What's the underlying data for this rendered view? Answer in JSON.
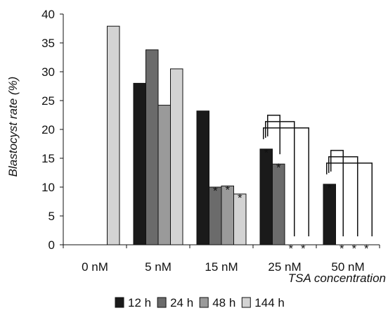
{
  "chart_data": {
    "type": "bar",
    "ylabel": "Blastocyst rate (%)",
    "xlabel": "TSA concentration",
    "ylim": [
      0,
      40
    ],
    "yticks": [
      "0",
      "5",
      "10",
      "15",
      "20",
      "25",
      "30",
      "35",
      "40"
    ],
    "categories": [
      "0 nM",
      "5 nM",
      "15 nM",
      "25 nM",
      "50 nM"
    ],
    "series": [
      {
        "name": "12 h",
        "color": "#1a1a1a",
        "values": [
          null,
          28.0,
          23.2,
          16.6,
          10.5
        ]
      },
      {
        "name": "24 h",
        "color": "#6b6b6b",
        "values": [
          null,
          33.8,
          10.0,
          14.0,
          0
        ]
      },
      {
        "name": "48 h",
        "color": "#9a9a9a",
        "values": [
          null,
          24.2,
          10.2,
          0,
          0
        ]
      },
      {
        "name": "144 h",
        "color": "#d3d3d3",
        "values": [
          37.9,
          30.5,
          8.8,
          0,
          0
        ]
      }
    ],
    "significance": [
      {
        "category": "15 nM",
        "series": [
          "24 h",
          "48 h",
          "144 h"
        ],
        "mark": "*"
      },
      {
        "category": "25 nM",
        "series": [
          "12 h",
          "24 h",
          "48 h",
          "144 h"
        ],
        "mark": "*"
      },
      {
        "category": "50 nM",
        "series": [
          "12 h",
          "24 h",
          "48 h",
          "144 h"
        ],
        "mark": "*"
      }
    ],
    "grid": false,
    "legend": "bottom"
  }
}
